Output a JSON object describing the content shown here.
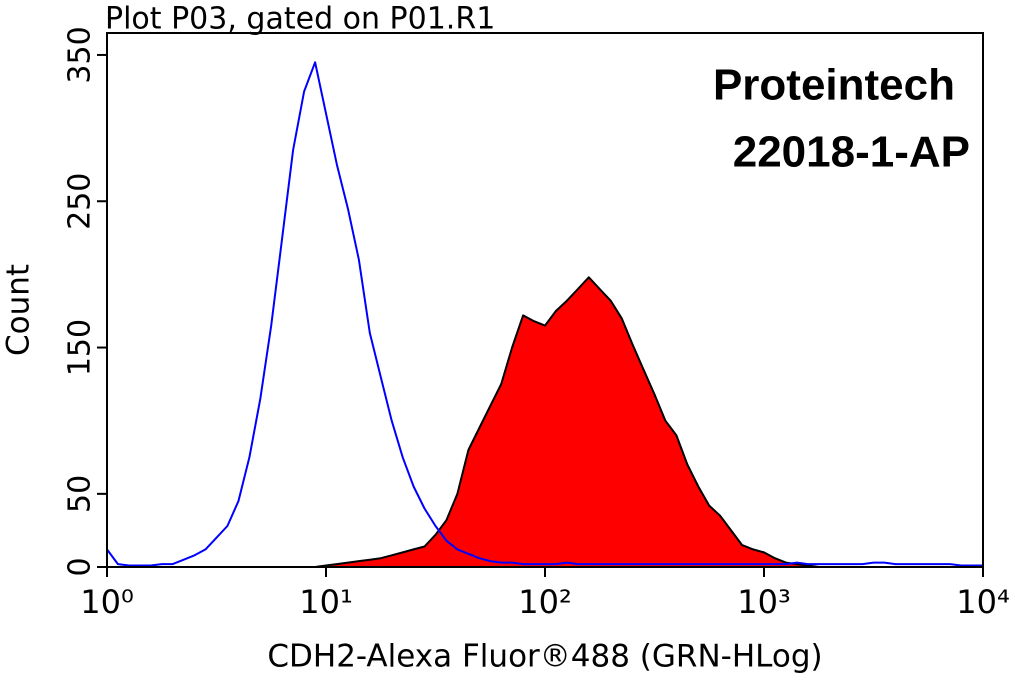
{
  "chart_data": {
    "type": "histogram-overlay",
    "title": "Plot P03, gated on P01.R1",
    "annotations": [
      "Proteintech",
      "22018-1-AP"
    ],
    "xlabel": "CDH2-Alexa Fluor®488 (GRN-HLog)",
    "ylabel": "Count",
    "xscale": "log",
    "xlim": [
      1,
      10000
    ],
    "ylim": [
      0,
      365
    ],
    "xticks": [
      {
        "value": 1,
        "label": "10⁰"
      },
      {
        "value": 10,
        "label": "10¹"
      },
      {
        "value": 100,
        "label": "10²"
      },
      {
        "value": 1000,
        "label": "10³"
      },
      {
        "value": 10000,
        "label": "10⁴"
      }
    ],
    "yticks": [
      0,
      50,
      150,
      250,
      350
    ],
    "x": [
      1,
      1.122,
      1.259,
      1.413,
      1.585,
      1.778,
      1.995,
      2.239,
      2.512,
      2.818,
      3.162,
      3.548,
      3.981,
      4.467,
      5.012,
      5.623,
      6.31,
      7.079,
      7.943,
      8.913,
      10,
      11.22,
      12.59,
      14.13,
      15.85,
      17.78,
      19.95,
      22.39,
      25.12,
      28.18,
      31.62,
      35.48,
      39.81,
      44.67,
      50.12,
      56.23,
      63.1,
      70.79,
      79.43,
      89.13,
      100,
      112.2,
      125.9,
      141.3,
      158.5,
      177.8,
      199.5,
      223.9,
      251.2,
      281.8,
      316.2,
      354.8,
      398.1,
      446.7,
      501.2,
      562.3,
      631,
      707.9,
      794.3,
      891.3,
      1000,
      1122,
      1259,
      1413,
      1585,
      1778,
      1995,
      2239,
      2512,
      2818,
      3162,
      3548,
      3981,
      4467,
      5012,
      5623,
      6310,
      7079,
      7943,
      8913,
      10000
    ],
    "series": [
      {
        "color": "#ff0000",
        "edge_color": "#000000",
        "fill": true,
        "values": [
          0,
          0,
          0,
          0,
          0,
          0,
          0,
          0,
          0,
          0,
          0,
          0,
          0,
          0,
          0,
          0,
          0,
          0,
          0,
          0,
          1,
          2,
          3,
          4,
          5,
          6,
          8,
          10,
          12,
          14,
          22,
          32,
          50,
          80,
          95,
          110,
          125,
          150,
          172,
          168,
          165,
          175,
          182,
          190,
          198,
          190,
          182,
          170,
          152,
          135,
          118,
          100,
          90,
          70,
          55,
          42,
          35,
          25,
          15,
          12,
          10,
          6,
          3,
          2,
          1,
          0,
          0,
          0,
          0,
          0,
          0,
          0,
          0,
          0,
          0,
          0,
          0,
          0,
          0,
          0,
          0
        ]
      },
      {
        "color": "#0000ff",
        "fill": false,
        "values": [
          12,
          2,
          1,
          1,
          1,
          2,
          2,
          5,
          8,
          12,
          20,
          28,
          45,
          75,
          115,
          165,
          225,
          285,
          325,
          345,
          310,
          275,
          245,
          210,
          160,
          130,
          100,
          75,
          55,
          40,
          28,
          18,
          12,
          9,
          6,
          4,
          3,
          3,
          2,
          2,
          2,
          2,
          3,
          2,
          2,
          2,
          2,
          2,
          2,
          2,
          2,
          2,
          2,
          2,
          2,
          2,
          2,
          2,
          2,
          2,
          2,
          2,
          2,
          3,
          2,
          2,
          2,
          2,
          2,
          2,
          3,
          3,
          2,
          2,
          2,
          2,
          2,
          2,
          1,
          1,
          1
        ]
      }
    ]
  }
}
